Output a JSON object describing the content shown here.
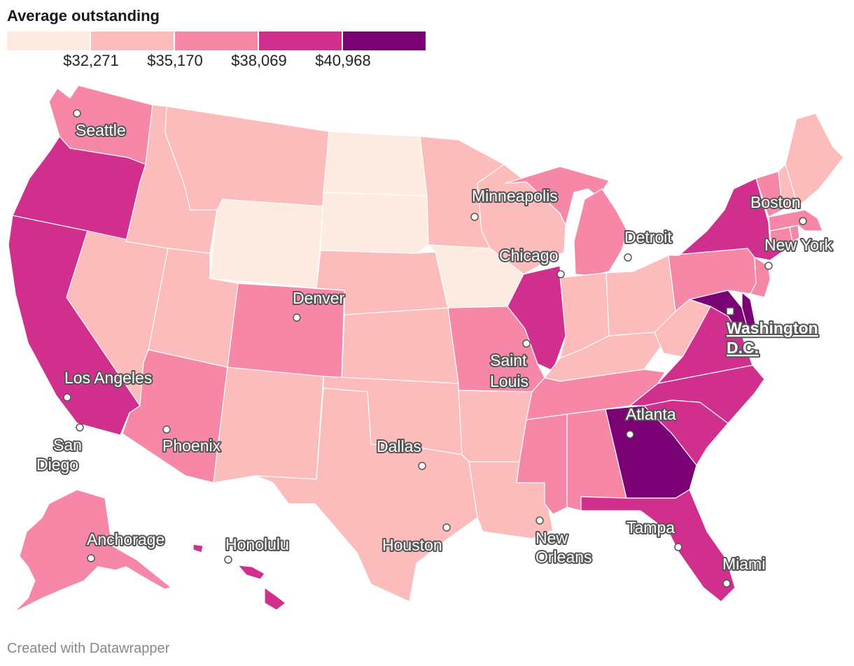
{
  "title": "Average outstanding",
  "legend": {
    "colors": [
      "#fdebe2",
      "#fbbcbb",
      "#f687a7",
      "#d02f8e",
      "#7b0274"
    ],
    "labels": [
      "$32,271",
      "$35,170",
      "$38,069",
      "$40,968"
    ]
  },
  "states": {
    "WA": 2,
    "OR": 3,
    "CA": 3,
    "NV": 1,
    "ID": 1,
    "MT": 1,
    "WY": 0,
    "UT": 1,
    "AZ": 2,
    "CO": 2,
    "NM": 1,
    "ND": 0,
    "SD": 0,
    "NE": 1,
    "KS": 1,
    "OK": 1,
    "TX": 1,
    "MN": 1,
    "IA": 0,
    "MO": 2,
    "AR": 1,
    "LA": 1,
    "WI": 1,
    "IL": 3,
    "MI": 2,
    "IN": 1,
    "OH": 1,
    "KY": 1,
    "TN": 2,
    "MS": 2,
    "AL": 2,
    "GA": 4,
    "FL": 3,
    "SC": 3,
    "NC": 3,
    "VA": 3,
    "WV": 1,
    "PA": 2,
    "NY": 3,
    "NJ": 2,
    "DE": 4,
    "MD": 4,
    "CT": 2,
    "RI": 2,
    "MA": 2,
    "VT": 2,
    "NH": 1,
    "ME": 1,
    "AK": 2,
    "HI": 3
  },
  "cities": [
    "Seattle",
    "Minneapolis",
    "Boston",
    "Detroit",
    "New York",
    "Chicago",
    "Denver",
    "Washington D.C.",
    "Saint Louis",
    "Los Angeles",
    "San Diego",
    "Phoenix",
    "Atlanta",
    "Dallas",
    "Tampa",
    "Anchorage",
    "Honolulu",
    "Houston",
    "New Orleans",
    "Miami"
  ],
  "credit": "Created with Datawrapper"
}
